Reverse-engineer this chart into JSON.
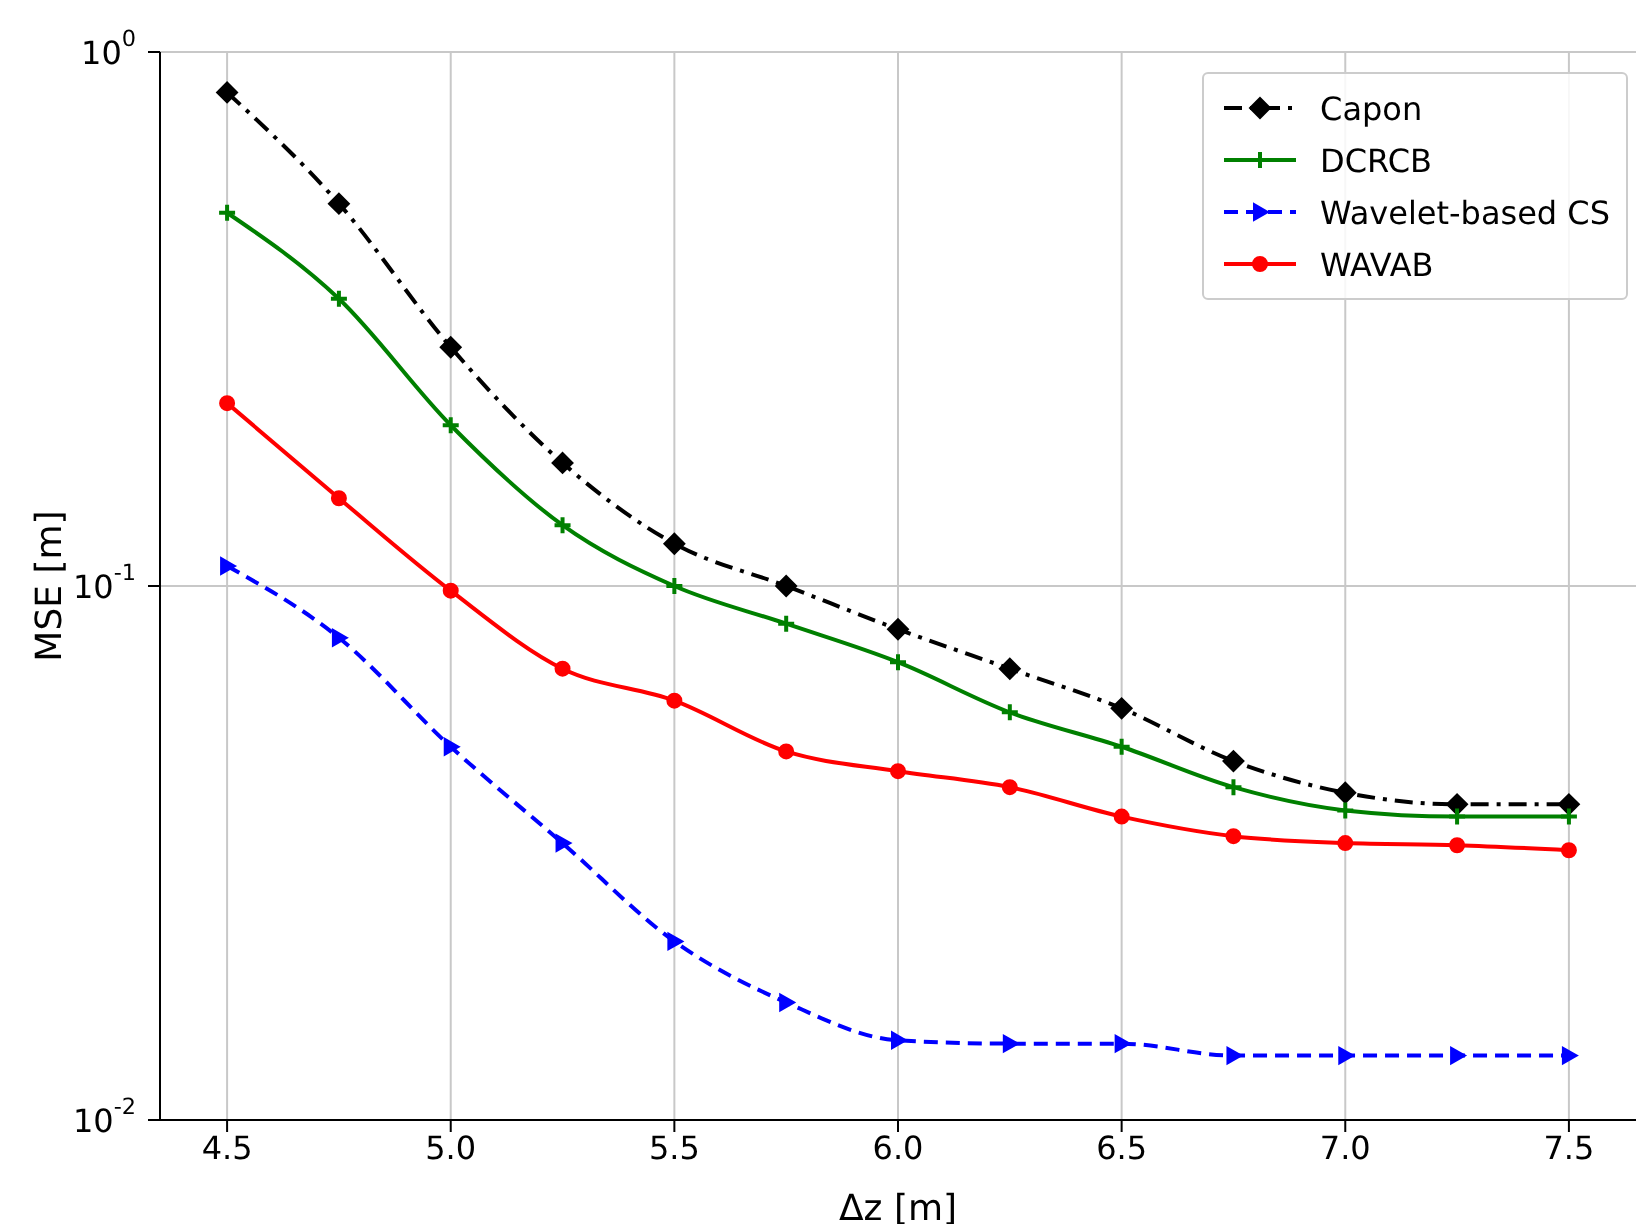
{
  "chart_data": {
    "type": "line",
    "xlabel": "Δz [m]",
    "ylabel": "MSE [m]",
    "x": [
      4.5,
      4.75,
      5.0,
      5.25,
      5.5,
      5.75,
      6.0,
      6.25,
      6.5,
      6.75,
      7.0,
      7.25,
      7.5
    ],
    "series": [
      {
        "name": "Capon",
        "color": "#000000",
        "marker": "diamond",
        "line_style": "dashdot",
        "values": [
          0.84,
          0.52,
          0.28,
          0.17,
          0.12,
          0.1,
          0.083,
          0.07,
          0.059,
          0.047,
          0.041,
          0.039,
          0.039
        ]
      },
      {
        "name": "DCRCB",
        "color": "#008000",
        "marker": "cross",
        "line_style": "solid",
        "values": [
          0.5,
          0.345,
          0.2,
          0.13,
          0.1,
          0.085,
          0.072,
          0.058,
          0.05,
          0.042,
          0.038,
          0.037,
          0.037
        ]
      },
      {
        "name": "Wavelet-based CS",
        "color": "#0000ff",
        "marker": "triangle",
        "line_style": "dashed",
        "values": [
          0.109,
          0.08,
          0.05,
          0.033,
          0.0216,
          0.0166,
          0.0141,
          0.0139,
          0.0139,
          0.0132,
          0.0132,
          0.0132,
          0.0132
        ]
      },
      {
        "name": "WAVAB",
        "color": "#ff0000",
        "marker": "circle",
        "line_style": "solid",
        "values": [
          0.22,
          0.146,
          0.098,
          0.07,
          0.061,
          0.049,
          0.045,
          0.042,
          0.037,
          0.034,
          0.033,
          0.0327,
          0.032
        ]
      }
    ],
    "xlim": [
      4.35,
      7.65
    ],
    "xticks": [
      4.5,
      {
        "value": 5,
        "label": "5.0"
      },
      5.5,
      {
        "value": 6,
        "label": "6.0"
      },
      6.5,
      {
        "value": 7,
        "label": "7.0"
      },
      7.5
    ],
    "log": "y",
    "ylim": [
      0.01,
      1
    ],
    "yticks": [
      {
        "value": 0.01,
        "label": "10$^{-2}$"
      },
      {
        "value": 0.1,
        "label": "10$^{-1}$"
      },
      {
        "value": 1,
        "label": "10$^{0}$"
      }
    ],
    "grid": true,
    "legend": "top right"
  }
}
